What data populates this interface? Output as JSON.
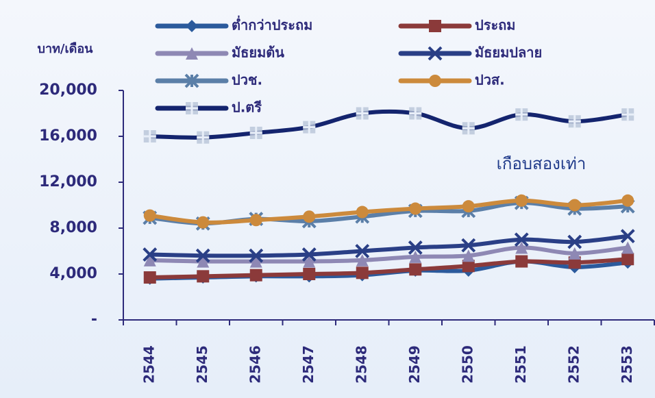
{
  "chart_data": {
    "type": "line",
    "y_label": "บาท/เดือน",
    "annotation": "เกือบสองเท่า",
    "categories": [
      "2544",
      "2545",
      "2546",
      "2547",
      "2548",
      "2549",
      "2550",
      "2551",
      "2552",
      "2553"
    ],
    "ylim": [
      0,
      20000
    ],
    "yticks": [
      {
        "value": 0,
        "label": "-"
      },
      {
        "value": 4000,
        "label": "4,000"
      },
      {
        "value": 8000,
        "label": "8,000"
      },
      {
        "value": 12000,
        "label": "12,000"
      },
      {
        "value": 16000,
        "label": "16,000"
      },
      {
        "value": 20000,
        "label": "20,000"
      }
    ],
    "series": [
      {
        "name": "ต่ำกว่าประถม",
        "color": "#2b5a9c",
        "marker": "diamond",
        "values": [
          3600,
          3700,
          3800,
          3800,
          3900,
          4300,
          4300,
          5100,
          4600,
          5000
        ]
      },
      {
        "name": "ประถม",
        "color": "#8b3a3a",
        "marker": "square",
        "values": [
          3700,
          3800,
          3900,
          4000,
          4100,
          4400,
          4700,
          5100,
          5000,
          5300
        ]
      },
      {
        "name": "มัธยมต้น",
        "color": "#8e88b4",
        "marker": "triangle",
        "values": [
          5200,
          5100,
          5100,
          5100,
          5200,
          5500,
          5600,
          6300,
          5800,
          6300
        ]
      },
      {
        "name": "มัธยมปลาย",
        "color": "#2a3f86",
        "marker": "x",
        "values": [
          5700,
          5600,
          5600,
          5700,
          6000,
          6300,
          6500,
          7000,
          6800,
          7300
        ]
      },
      {
        "name": "ปวช.",
        "color": "#5b7fa8",
        "marker": "star",
        "values": [
          8900,
          8400,
          8800,
          8600,
          9000,
          9500,
          9500,
          10200,
          9700,
          9900
        ]
      },
      {
        "name": "ปวส.",
        "color": "#cc8a3c",
        "marker": "circle",
        "values": [
          9100,
          8500,
          8700,
          9000,
          9400,
          9700,
          9900,
          10400,
          10000,
          10400
        ]
      },
      {
        "name": "ป.ตรี",
        "color": "#14246e",
        "marker": "plus",
        "values": [
          16000,
          15900,
          16300,
          16800,
          18000,
          18000,
          16700,
          17900,
          17300,
          17900
        ]
      }
    ]
  }
}
